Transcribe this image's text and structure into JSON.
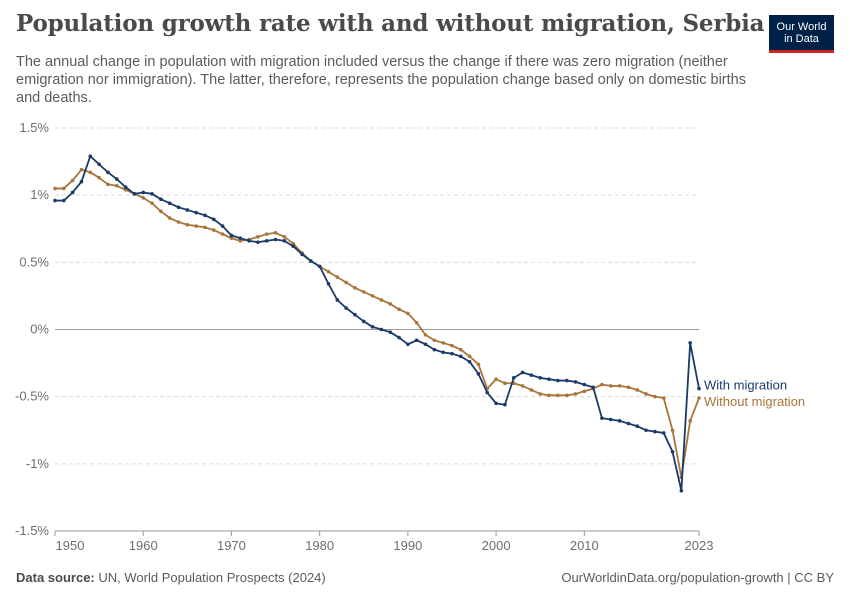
{
  "header": {
    "title": "Population growth rate with and without migration, Serbia",
    "subtitle": "The annual change in population with migration included versus the change if there was zero migration (neither emigration nor immigration). The latter, therefore, represents the population change based only on domestic births and deaths.",
    "logo_line1": "Our World",
    "logo_line2": "in Data"
  },
  "footer": {
    "source_label": "Data source:",
    "source_text": "UN, World Population Prospects (2024)",
    "url": "OurWorldinData.org/population-growth | CC BY"
  },
  "colors": {
    "with_migration": "#1a3a6b",
    "without_migration": "#a8753a",
    "grid": "#dddddd",
    "zero_line": "#9a9a9a"
  },
  "chart_data": {
    "type": "line",
    "title": "Population growth rate with and without migration, Serbia",
    "xlabel": "",
    "ylabel": "",
    "xlim": [
      1950,
      2023
    ],
    "ylim": [
      -1.5,
      1.5
    ],
    "y_ticks": [
      1.5,
      1,
      0.5,
      0,
      -0.5,
      -1,
      -1.5
    ],
    "y_tick_labels": [
      "1.5%",
      "1%",
      "0.5%",
      "0%",
      "-0.5%",
      "-1%",
      "-1.5%"
    ],
    "x_ticks": [
      1950,
      1960,
      1970,
      1980,
      1990,
      2000,
      2010,
      2023
    ],
    "x_tick_labels": [
      "1950",
      "1960",
      "1970",
      "1980",
      "1990",
      "2000",
      "2010",
      "2023"
    ],
    "grid": true,
    "legend": "right-end labels",
    "x": [
      1950,
      1951,
      1952,
      1953,
      1954,
      1955,
      1956,
      1957,
      1958,
      1959,
      1960,
      1961,
      1962,
      1963,
      1964,
      1965,
      1966,
      1967,
      1968,
      1969,
      1970,
      1971,
      1972,
      1973,
      1974,
      1975,
      1976,
      1977,
      1978,
      1979,
      1980,
      1981,
      1982,
      1983,
      1984,
      1985,
      1986,
      1987,
      1988,
      1989,
      1990,
      1991,
      1992,
      1993,
      1994,
      1995,
      1996,
      1997,
      1998,
      1999,
      2000,
      2001,
      2002,
      2003,
      2004,
      2005,
      2006,
      2007,
      2008,
      2009,
      2010,
      2011,
      2012,
      2013,
      2014,
      2015,
      2016,
      2017,
      2018,
      2019,
      2020,
      2021,
      2022,
      2023
    ],
    "series": [
      {
        "name": "With migration",
        "values": [
          0.96,
          0.96,
          1.02,
          1.1,
          1.29,
          1.23,
          1.17,
          1.12,
          1.06,
          1.01,
          1.02,
          1.01,
          0.97,
          0.94,
          0.91,
          0.89,
          0.87,
          0.85,
          0.82,
          0.77,
          0.7,
          0.68,
          0.66,
          0.65,
          0.66,
          0.67,
          0.66,
          0.62,
          0.56,
          0.51,
          0.47,
          0.34,
          0.22,
          0.16,
          0.11,
          0.06,
          0.02,
          0.0,
          -0.02,
          -0.06,
          -0.11,
          -0.08,
          -0.11,
          -0.15,
          -0.17,
          -0.18,
          -0.2,
          -0.24,
          -0.33,
          -0.47,
          -0.55,
          -0.56,
          -0.36,
          -0.32,
          -0.34,
          -0.36,
          -0.37,
          -0.38,
          -0.38,
          -0.39,
          -0.41,
          -0.43,
          -0.66,
          -0.67,
          -0.68,
          -0.7,
          -0.72,
          -0.75,
          -0.76,
          -0.77,
          -0.91,
          -1.2,
          -0.1,
          -0.44
        ]
      },
      {
        "name": "Without migration",
        "values": [
          1.05,
          1.05,
          1.11,
          1.19,
          1.17,
          1.13,
          1.08,
          1.07,
          1.04,
          1.01,
          0.98,
          0.94,
          0.88,
          0.83,
          0.8,
          0.78,
          0.77,
          0.76,
          0.74,
          0.71,
          0.68,
          0.66,
          0.67,
          0.69,
          0.71,
          0.72,
          0.69,
          0.64,
          0.57,
          0.51,
          0.47,
          0.43,
          0.39,
          0.35,
          0.31,
          0.28,
          0.25,
          0.22,
          0.19,
          0.15,
          0.12,
          0.05,
          -0.04,
          -0.08,
          -0.1,
          -0.12,
          -0.15,
          -0.2,
          -0.26,
          -0.44,
          -0.37,
          -0.4,
          -0.4,
          -0.42,
          -0.45,
          -0.48,
          -0.49,
          -0.49,
          -0.49,
          -0.48,
          -0.46,
          -0.44,
          -0.41,
          -0.42,
          -0.42,
          -0.43,
          -0.45,
          -0.48,
          -0.5,
          -0.51,
          -0.75,
          -1.1,
          -0.68,
          -0.51
        ]
      }
    ]
  }
}
